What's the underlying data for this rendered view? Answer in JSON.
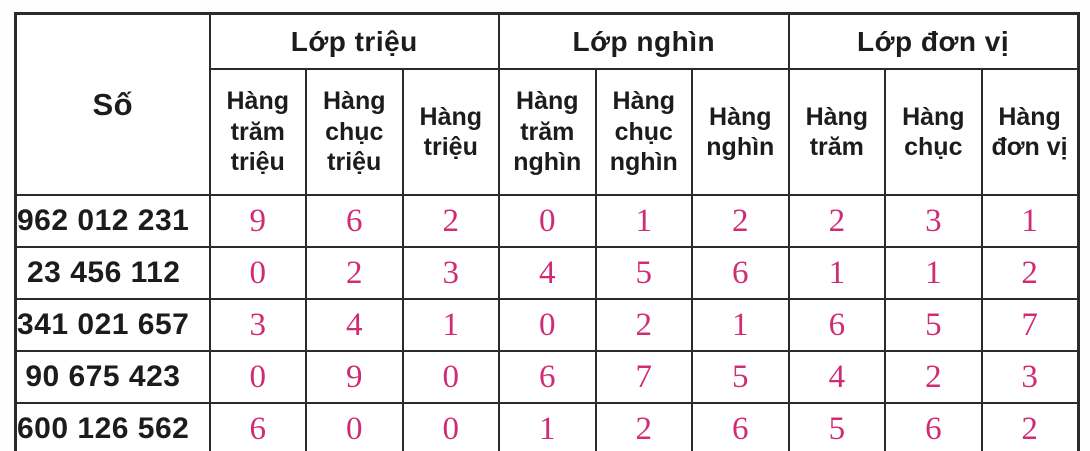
{
  "table": {
    "number_column_header": "Số",
    "groups": [
      {
        "label": "Lớp triệu",
        "columns": [
          "Hàng trăm triệu",
          "Hàng chục triệu",
          "Hàng triệu"
        ]
      },
      {
        "label": "Lớp nghìn",
        "columns": [
          "Hàng trăm nghìn",
          "Hàng chục nghìn",
          "Hàng nghìn"
        ]
      },
      {
        "label": "Lớp đơn vị",
        "columns": [
          "Hàng trăm",
          "Hàng chục",
          "Hàng đơn vị"
        ]
      }
    ],
    "rows": [
      {
        "number": "962 012 231",
        "digits": [
          "9",
          "6",
          "2",
          "0",
          "1",
          "2",
          "2",
          "3",
          "1"
        ]
      },
      {
        "number": "23 456 112",
        "digits": [
          "0",
          "2",
          "3",
          "4",
          "5",
          "6",
          "1",
          "1",
          "2"
        ]
      },
      {
        "number": "341 021 657",
        "digits": [
          "3",
          "4",
          "1",
          "0",
          "2",
          "1",
          "6",
          "5",
          "7"
        ]
      },
      {
        "number": "90 675 423",
        "digits": [
          "0",
          "9",
          "0",
          "6",
          "7",
          "5",
          "4",
          "2",
          "3"
        ]
      },
      {
        "number": "600 126 562",
        "digits": [
          "6",
          "0",
          "0",
          "1",
          "2",
          "6",
          "5",
          "6",
          "2"
        ]
      }
    ]
  },
  "colors": {
    "digit": "#d02c75",
    "border": "#2b2b2b",
    "text": "#1c1c1c"
  }
}
